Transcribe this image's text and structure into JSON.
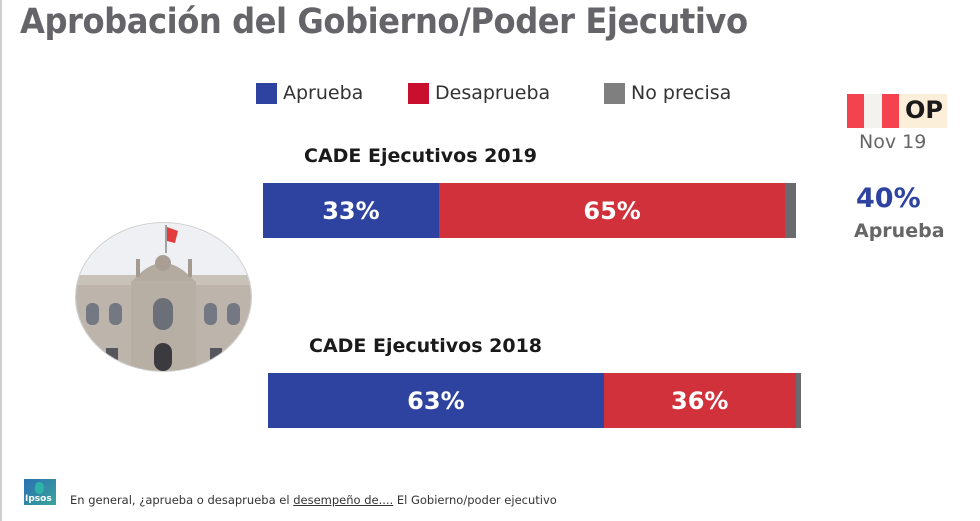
{
  "title": "Aprobación del Gobierno/Poder Ejecutivo",
  "colors": {
    "aprueba": "#2e43a0",
    "desaprueba": "#d0313a",
    "no_precisa": "#69696e",
    "title": "#646469"
  },
  "legend": [
    {
      "label": "Aprueba",
      "color": "#2e43a0"
    },
    {
      "label": "Desaprueba",
      "color": "#c8102e"
    },
    {
      "label": "No precisa",
      "color": "#7f7f7f"
    }
  ],
  "chart_data": {
    "type": "bar",
    "orientation": "horizontal-stacked",
    "title": "Aprobación del Gobierno/Poder Ejecutivo",
    "legend_position": "top",
    "categories": [
      "CADE Ejecutivos 2019",
      "CADE Ejecutivos 2018"
    ],
    "series": [
      {
        "name": "Aprueba",
        "values": [
          33,
          63
        ],
        "labels": [
          "33%",
          "63%"
        ]
      },
      {
        "name": "Desaprueba",
        "values": [
          65,
          36
        ],
        "labels": [
          "65%",
          "36%"
        ]
      },
      {
        "name": "No precisa",
        "values": [
          2,
          1
        ],
        "labels": [
          "",
          ""
        ]
      }
    ],
    "xlim": [
      0,
      100
    ],
    "grid": false
  },
  "side_panel": {
    "logo_text": "OP",
    "date": "Nov 19",
    "value": "40%",
    "value_label": "Aprueba"
  },
  "footer": {
    "logo_text": "Ipsos",
    "question_prefix": "En general, ¿aprueba o desaprueba el ",
    "question_underlined": "desempeño de....",
    "question_suffix": " El Gobierno/poder ejecutivo"
  },
  "image": {
    "description": "Palacio de Gobierno del Perú"
  }
}
